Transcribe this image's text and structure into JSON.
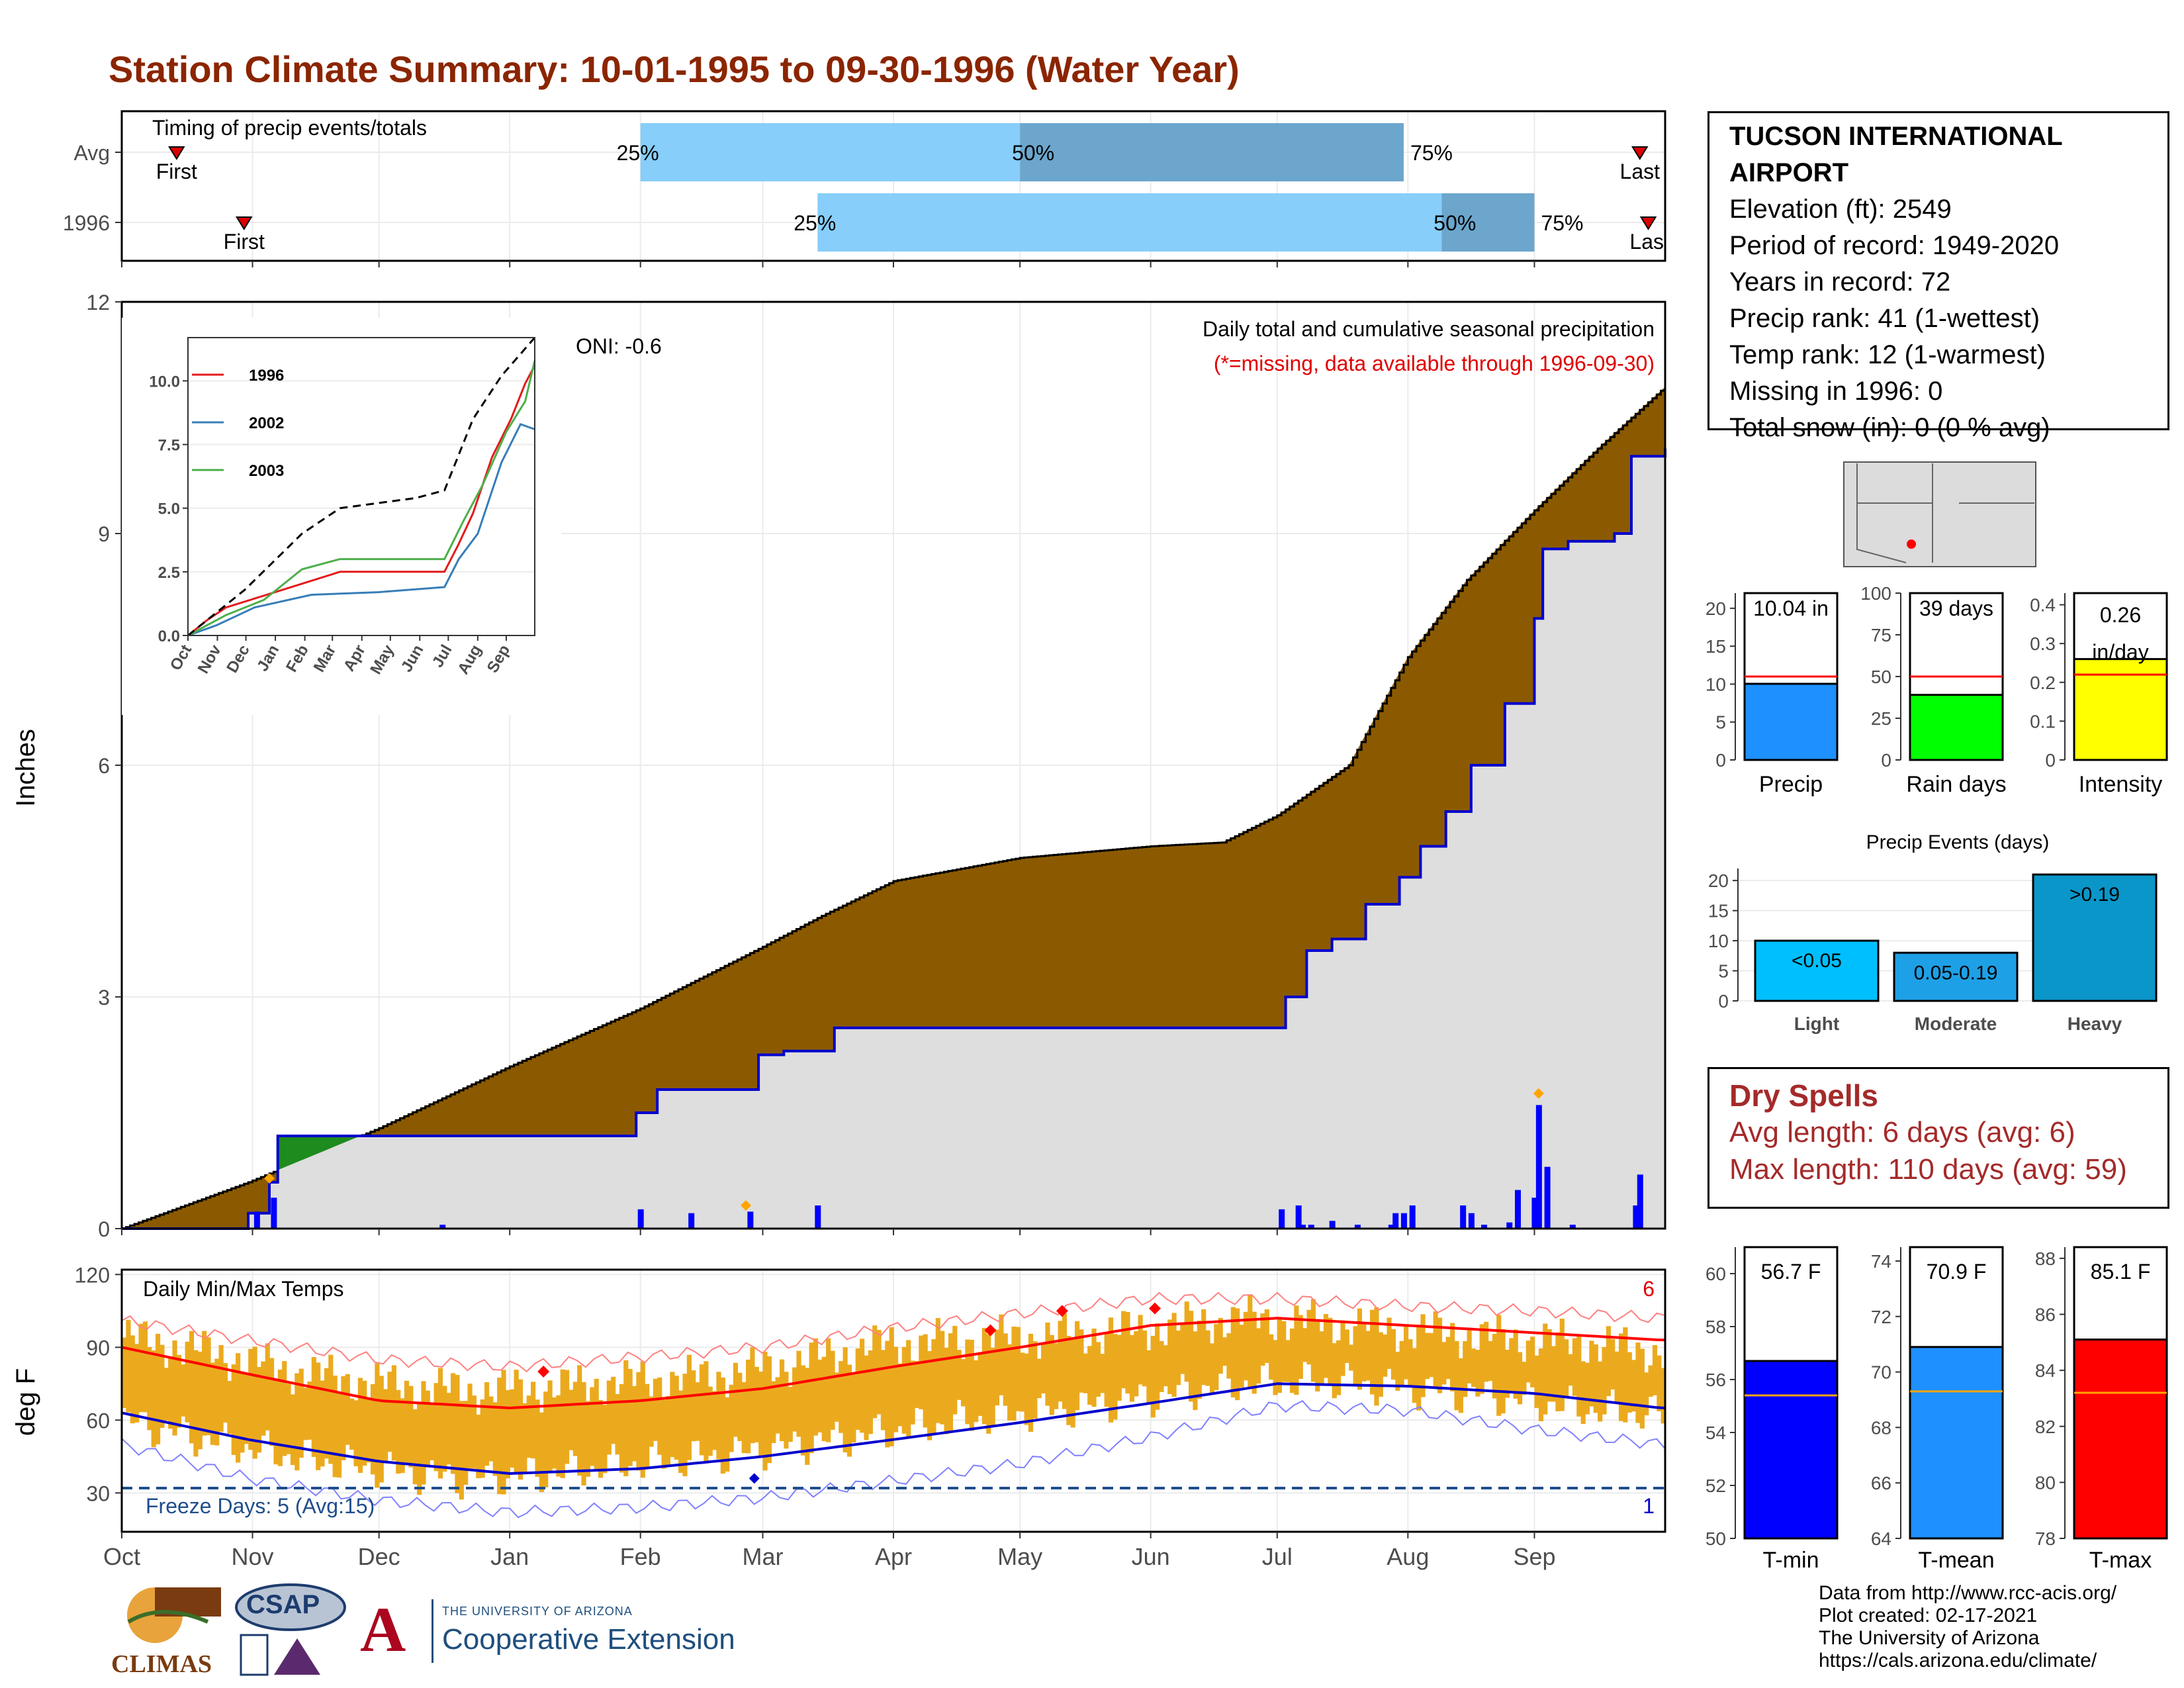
{
  "title": "Station Climate Summary: 10-01-1995 to 09-30-1996 (Water Year)",
  "station": {
    "name": "TUCSON INTERNATIONAL AIRPORT",
    "elevation": "Elevation (ft): 2549",
    "period": "Period of record: 1949-2020",
    "years": "Years in record: 72",
    "precip_rank": "Precip rank: 41 (1-wettest)",
    "temp_rank": "Temp rank: 12 (1-warmest)",
    "missing": "Missing in 1996: 0",
    "snow": "Total snow (in): 0 (0 % avg)"
  },
  "dry_spells": {
    "title": "Dry Spells",
    "avg": "Avg length: 6 days (avg: 6)",
    "max": "Max length: 110 days (avg: 59)"
  },
  "credits": [
    "Data from http://www.rcc-acis.org/",
    "Plot created: 02-17-2021",
    "The University of Arizona",
    "https://cals.arizona.edu/climate/"
  ],
  "logos": {
    "climas": "CLIMAS",
    "csap": "CSAP",
    "ua_small": "THE UNIVERSITY OF ARIZONA",
    "ua_big": "Cooperative Extension",
    "ua_mark": "A"
  },
  "colors": {
    "title": "#8B2500",
    "cumulative_fill": "#8B5A00",
    "surplus_fill": "#1E8B1E",
    "avg_area": "#DEDEDE",
    "daily_bar": "#0000FF",
    "temp_band": "#EBAA1E",
    "tmax_line": "#FF0000",
    "tmin_line": "#0000CD",
    "light_bar": "#87CEFA"
  },
  "chart_data": [
    {
      "type": "bar",
      "panel": "timing",
      "title": "Timing of precip events/totals",
      "categories": [
        "Avg",
        "1996"
      ],
      "x_range": [
        "10-01",
        "09-30"
      ],
      "rows": [
        {
          "name": "Avg",
          "first": "Oct 14",
          "p25": "Feb 01",
          "p50": "May 01",
          "p75": "Jul 31",
          "last": "Sep 26"
        },
        {
          "name": "1996",
          "first": "Oct 30",
          "p25": "Mar 14",
          "p50": "Aug 09",
          "p75": "Aug 31",
          "last": "Sep 28"
        }
      ],
      "labels": {
        "first": "First",
        "last": "Last",
        "p25": "25%",
        "p50": "50%",
        "p75": "75%",
        "last_clipped": "Las"
      }
    },
    {
      "type": "area",
      "panel": "precip",
      "title": "Daily total and cumulative seasonal precipitation",
      "subtitle": "(*=missing, data available through 1996-09-30)",
      "annotation": "ONI: -0.6",
      "ylabel": "Inches",
      "ylim": [
        0,
        12
      ],
      "yticks": [
        0,
        3,
        6,
        9,
        12
      ],
      "xticks": [
        "Oct",
        "Nov",
        "Dec",
        "Jan",
        "Feb",
        "Mar",
        "Apr",
        "May",
        "Jun",
        "Jul",
        "Aug",
        "Sep"
      ],
      "avg_cumulative": [
        [
          0,
          0
        ],
        [
          30,
          0.6
        ],
        [
          61,
          1.3
        ],
        [
          92,
          2.1
        ],
        [
          123,
          2.85
        ],
        [
          152,
          3.65
        ],
        [
          166,
          4.05
        ],
        [
          183,
          4.5
        ],
        [
          213,
          4.8
        ],
        [
          244,
          4.95
        ],
        [
          261,
          5.0
        ],
        [
          274,
          5.35
        ],
        [
          291,
          6.0
        ],
        [
          305,
          7.4
        ],
        [
          319,
          8.4
        ],
        [
          335,
          9.3
        ],
        [
          350,
          10.1
        ],
        [
          366,
          10.9
        ]
      ],
      "obs_cumulative": [
        [
          0,
          0
        ],
        [
          30,
          0.2
        ],
        [
          35,
          0.6
        ],
        [
          37,
          1.2
        ],
        [
          80,
          1.2
        ],
        [
          122,
          1.5
        ],
        [
          127,
          1.8
        ],
        [
          142,
          1.8
        ],
        [
          151,
          2.25
        ],
        [
          157,
          2.3
        ],
        [
          169,
          2.6
        ],
        [
          170,
          2.6
        ],
        [
          273,
          2.6
        ],
        [
          276,
          3.0
        ],
        [
          281,
          3.6
        ],
        [
          287,
          3.75
        ],
        [
          295,
          4.2
        ],
        [
          303,
          4.55
        ],
        [
          308,
          4.95
        ],
        [
          314,
          5.4
        ],
        [
          320,
          6.0
        ],
        [
          328,
          6.8
        ],
        [
          335,
          7.9
        ],
        [
          337,
          8.8
        ],
        [
          343,
          8.9
        ],
        [
          354,
          9.0
        ],
        [
          358,
          10.0
        ],
        [
          366,
          10.1
        ]
      ],
      "daily": [
        [
          32,
          0.22
        ],
        [
          36,
          0.4
        ],
        [
          76,
          0.05
        ],
        [
          123,
          0.25
        ],
        [
          135,
          0.2
        ],
        [
          149,
          0.22
        ],
        [
          165,
          0.3
        ],
        [
          275,
          0.25
        ],
        [
          279,
          0.3
        ],
        [
          280,
          0.05
        ],
        [
          282,
          0.05
        ],
        [
          287,
          0.1
        ],
        [
          293,
          0.05
        ],
        [
          301,
          0.05
        ],
        [
          302,
          0.2
        ],
        [
          304,
          0.2
        ],
        [
          306,
          0.3
        ],
        [
          318,
          0.3
        ],
        [
          320,
          0.2
        ],
        [
          323,
          0.05
        ],
        [
          329,
          0.08
        ],
        [
          331,
          0.5
        ],
        [
          335,
          0.4
        ],
        [
          336,
          1.6
        ],
        [
          338,
          0.8
        ],
        [
          344,
          0.05
        ],
        [
          359,
          0.3
        ],
        [
          360,
          0.7
        ]
      ],
      "missing_markers": [
        [
          35,
          0.65
        ],
        [
          148,
          0.3
        ],
        [
          336,
          1.75
        ]
      ]
    },
    {
      "type": "line",
      "panel": "inset",
      "series": [
        {
          "name": "1996",
          "values": [
            [
              0,
              0
            ],
            [
              20,
              0.6
            ],
            [
              40,
              1.1
            ],
            [
              100,
              1.8
            ],
            [
              160,
              2.5
            ],
            [
              270,
              2.5
            ],
            [
              285,
              3.6
            ],
            [
              300,
              4.8
            ],
            [
              320,
              7.0
            ],
            [
              340,
              8.5
            ],
            [
              355,
              9.9
            ],
            [
              365,
              10.6
            ]
          ]
        },
        {
          "name": "2002",
          "values": [
            [
              0,
              0
            ],
            [
              30,
              0.4
            ],
            [
              70,
              1.1
            ],
            [
              130,
              1.6
            ],
            [
              200,
              1.7
            ],
            [
              270,
              1.9
            ],
            [
              285,
              3.0
            ],
            [
              305,
              4.0
            ],
            [
              330,
              6.8
            ],
            [
              350,
              8.3
            ],
            [
              365,
              8.1
            ]
          ]
        },
        {
          "name": "2003",
          "values": [
            [
              0,
              0
            ],
            [
              40,
              0.8
            ],
            [
              80,
              1.4
            ],
            [
              120,
              2.6
            ],
            [
              160,
              3.0
            ],
            [
              270,
              3.0
            ],
            [
              290,
              4.5
            ],
            [
              310,
              5.9
            ],
            [
              335,
              8.0
            ],
            [
              355,
              9.2
            ],
            [
              365,
              10.8
            ]
          ]
        },
        {
          "name": "avg",
          "dashed": true,
          "values": [
            [
              0,
              0
            ],
            [
              60,
              1.8
            ],
            [
              120,
              4.0
            ],
            [
              160,
              5.0
            ],
            [
              240,
              5.4
            ],
            [
              270,
              5.7
            ],
            [
              300,
              8.5
            ],
            [
              330,
              10.2
            ],
            [
              365,
              11.7
            ]
          ]
        }
      ],
      "ylim": [
        0,
        11.7
      ],
      "yticks": [
        0.0,
        2.5,
        5.0,
        7.5,
        10.0
      ],
      "xticks": [
        "Oct",
        "Nov",
        "Dec",
        "Jan",
        "Feb",
        "Mar",
        "Apr",
        "May",
        "Jun",
        "Jul",
        "Aug",
        "Sep"
      ]
    },
    {
      "type": "bar",
      "panel": "temps",
      "title": "Daily Min/Max Temps",
      "ylabel": "deg F",
      "ylim": [
        14,
        122
      ],
      "yticks": [
        30,
        60,
        90,
        120
      ],
      "freeze_line": 32,
      "freeze_label": "Freeze Days: 5 (Avg:15)",
      "record_high_count": "6",
      "record_low_count": "1",
      "xticks": [
        "Oct",
        "Nov",
        "Dec",
        "Jan",
        "Feb",
        "Mar",
        "Apr",
        "May",
        "Jun",
        "Jul",
        "Aug",
        "Sep"
      ],
      "avg_tmax": [
        [
          0,
          90
        ],
        [
          30,
          79
        ],
        [
          61,
          68
        ],
        [
          92,
          65
        ],
        [
          123,
          68
        ],
        [
          152,
          73
        ],
        [
          183,
          82
        ],
        [
          213,
          90
        ],
        [
          244,
          99
        ],
        [
          274,
          102
        ],
        [
          305,
          99
        ],
        [
          335,
          96
        ],
        [
          365,
          93
        ]
      ],
      "avg_tmin": [
        [
          0,
          63
        ],
        [
          30,
          52
        ],
        [
          61,
          43
        ],
        [
          92,
          38
        ],
        [
          123,
          40
        ],
        [
          152,
          45
        ],
        [
          183,
          52
        ],
        [
          213,
          59
        ],
        [
          244,
          67
        ],
        [
          274,
          75
        ],
        [
          305,
          74
        ],
        [
          335,
          71
        ],
        [
          365,
          65
        ]
      ],
      "record_max": [
        [
          0,
          101
        ],
        [
          30,
          93
        ],
        [
          61,
          85
        ],
        [
          92,
          82
        ],
        [
          123,
          86
        ],
        [
          152,
          90
        ],
        [
          183,
          98
        ],
        [
          213,
          104
        ],
        [
          244,
          110
        ],
        [
          274,
          110
        ],
        [
          305,
          107
        ],
        [
          335,
          105
        ],
        [
          365,
          102
        ]
      ],
      "record_min": [
        [
          0,
          50
        ],
        [
          30,
          36
        ],
        [
          61,
          27
        ],
        [
          92,
          22
        ],
        [
          123,
          24
        ],
        [
          152,
          28
        ],
        [
          183,
          35
        ],
        [
          213,
          42
        ],
        [
          244,
          53
        ],
        [
          274,
          66
        ],
        [
          305,
          64
        ],
        [
          335,
          56
        ],
        [
          365,
          50
        ]
      ],
      "obs_tmax": [
        [
          0,
          94
        ],
        [
          20,
          88
        ],
        [
          40,
          80
        ],
        [
          60,
          75
        ],
        [
          80,
          72
        ],
        [
          100,
          73
        ],
        [
          120,
          76
        ],
        [
          140,
          78
        ],
        [
          160,
          84
        ],
        [
          180,
          91
        ],
        [
          200,
          93
        ],
        [
          225,
          95
        ],
        [
          245,
          98
        ],
        [
          265,
          102
        ],
        [
          285,
          100
        ],
        [
          305,
          97
        ],
        [
          325,
          94
        ],
        [
          345,
          92
        ],
        [
          365,
          88
        ]
      ],
      "obs_tmin": [
        [
          0,
          60
        ],
        [
          20,
          52
        ],
        [
          40,
          45
        ],
        [
          60,
          40
        ],
        [
          80,
          36
        ],
        [
          100,
          38
        ],
        [
          120,
          42
        ],
        [
          140,
          45
        ],
        [
          160,
          50
        ],
        [
          180,
          55
        ],
        [
          200,
          60
        ],
        [
          225,
          65
        ],
        [
          245,
          70
        ],
        [
          265,
          75
        ],
        [
          285,
          76
        ],
        [
          305,
          73
        ],
        [
          325,
          70
        ],
        [
          345,
          65
        ],
        [
          365,
          62
        ]
      ],
      "record_highs": [
        [
          100,
          80
        ],
        [
          206,
          97
        ],
        [
          223,
          105
        ],
        [
          245,
          106
        ]
      ],
      "record_lows": [
        [
          150,
          36
        ]
      ]
    },
    {
      "type": "bar",
      "panel": "precip_summary",
      "categories": [
        "Precip",
        "Rain days",
        "Intensity"
      ],
      "values": [
        10.04,
        39,
        0.26
      ],
      "averages": [
        11,
        50,
        0.22
      ],
      "labels": [
        "10.04 in",
        "39 days",
        "0.26 in/day"
      ],
      "ylims": [
        [
          0,
          22
        ],
        [
          0,
          100
        ],
        [
          0,
          0.43
        ]
      ],
      "yticks": [
        [
          0,
          5,
          10,
          15,
          20
        ],
        [
          0,
          25,
          50,
          75,
          100
        ],
        [
          0.0,
          0.1,
          0.2,
          0.3,
          0.4
        ]
      ],
      "colors": [
        "#1E90FF",
        "#00FF00",
        "#FFFF00"
      ]
    },
    {
      "type": "bar",
      "panel": "precip_events",
      "title": "Precip Events (days)",
      "categories": [
        "Light",
        "Moderate",
        "Heavy"
      ],
      "values": [
        10,
        8,
        21
      ],
      "bar_labels": [
        "<0.05",
        "0.05-0.19",
        ">0.19"
      ],
      "ylim": [
        0,
        22
      ],
      "yticks": [
        0,
        5,
        10,
        15,
        20
      ],
      "colors": [
        "#00BFFF",
        "#1EA0E6",
        "#0A96C8"
      ]
    },
    {
      "type": "bar",
      "panel": "temp_summary",
      "categories": [
        "T-min",
        "T-mean",
        "T-max"
      ],
      "values": [
        56.7,
        70.9,
        85.1
      ],
      "averages": [
        55.4,
        69.3,
        83.2
      ],
      "labels": [
        "56.7 F",
        "70.9 F",
        "85.1 F"
      ],
      "ylims": [
        [
          50,
          61
        ],
        [
          64,
          74.5
        ],
        [
          78,
          88.4
        ]
      ],
      "yticks": [
        [
          50,
          52,
          54,
          56,
          58,
          60
        ],
        [
          64,
          66,
          68,
          70,
          72,
          74
        ],
        [
          78,
          80,
          82,
          84,
          86,
          88
        ]
      ],
      "colors": [
        "#0000FF",
        "#1E90FF",
        "#FF0000"
      ]
    }
  ]
}
